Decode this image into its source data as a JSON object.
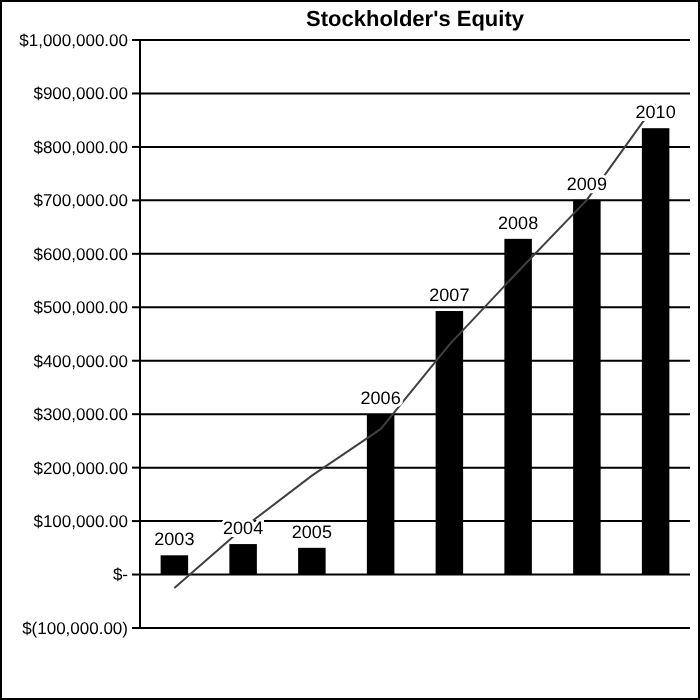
{
  "chart_data": {
    "type": "bar",
    "title": "Stockholder's Equity",
    "categories": [
      "2003",
      "2004",
      "2005",
      "2006",
      "2007",
      "2008",
      "2009",
      "2010"
    ],
    "series": [
      {
        "color": "#000000",
        "values": [
          36000,
          57000,
          50000,
          300000,
          493000,
          628000,
          701000,
          835000
        ]
      },
      {
        "type": "line",
        "color": "#404040",
        "values": [
          -25000,
          87000,
          185000,
          272000,
          430000,
          567000,
          701000,
          880000
        ]
      }
    ],
    "ylim": [
      -100000,
      1000000
    ],
    "yticks": [
      {
        "value": -100000,
        "label": "$(100,000.00)"
      },
      {
        "value": 0,
        "label": "$-"
      },
      {
        "value": 100000,
        "label": "$100,000.00"
      },
      {
        "value": 200000,
        "label": "$200,000.00"
      },
      {
        "value": 300000,
        "label": "$300,000.00"
      },
      {
        "value": 400000,
        "label": "$400,000.00"
      },
      {
        "value": 500000,
        "label": "$500,000.00"
      },
      {
        "value": 600000,
        "label": "$600,000.00"
      },
      {
        "value": 700000,
        "label": "$700,000.00"
      },
      {
        "value": 800000,
        "label": "$800,000.00"
      },
      {
        "value": 900000,
        "label": "$900,000.00"
      },
      {
        "value": 1000000,
        "label": "$1,000,000.00"
      }
    ],
    "grid": "y",
    "tick_labels": "y",
    "marker": "none",
    "line_style": "solid"
  }
}
